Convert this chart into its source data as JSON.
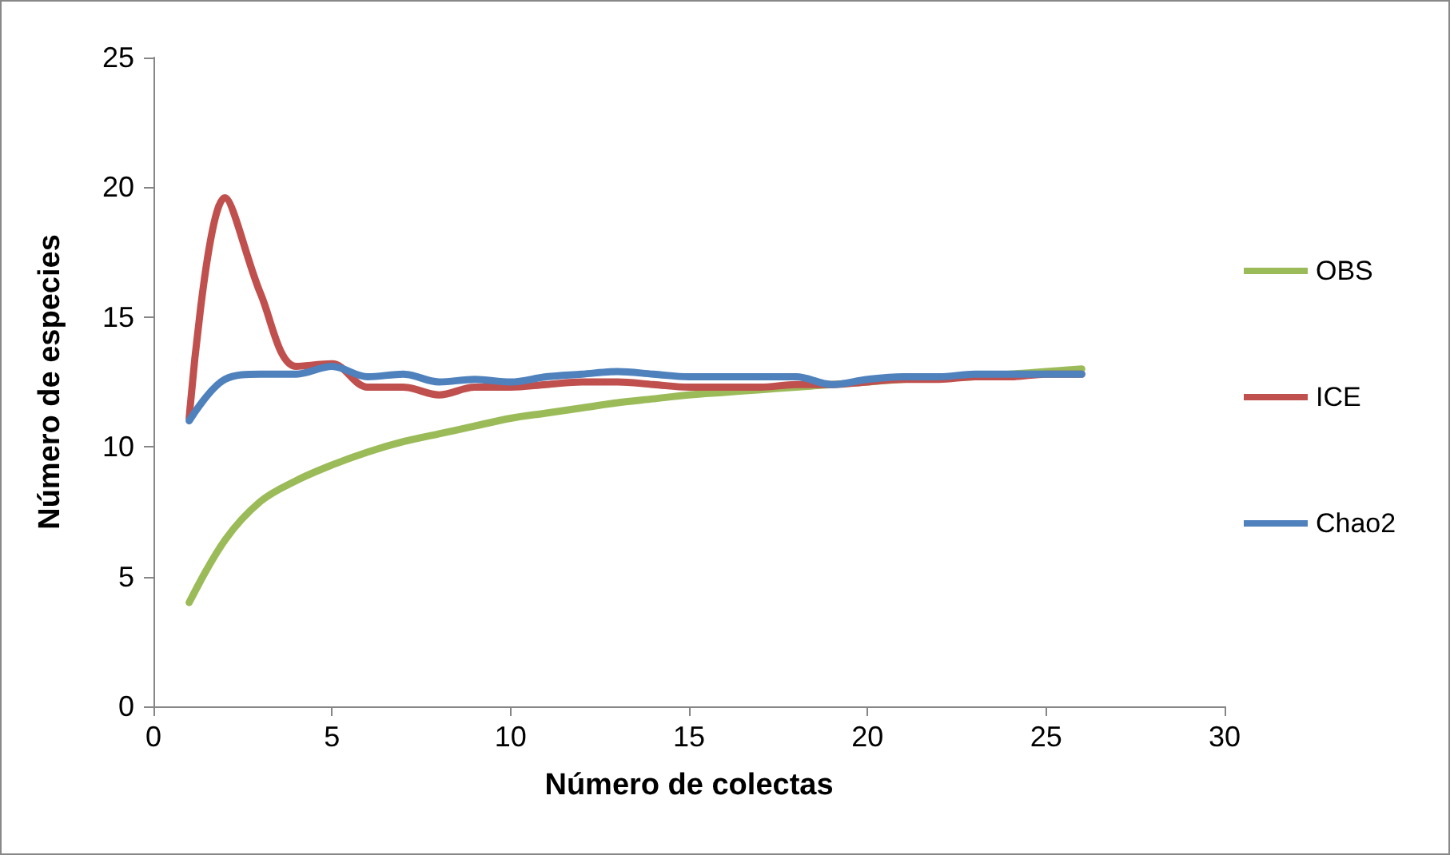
{
  "chart_data": {
    "type": "line",
    "xlabel": "Número de colectas",
    "ylabel": "Número de especies",
    "x": [
      1,
      2,
      3,
      4,
      5,
      6,
      7,
      8,
      9,
      10,
      11,
      12,
      13,
      14,
      15,
      16,
      17,
      18,
      19,
      20,
      21,
      22,
      23,
      24,
      25,
      26
    ],
    "series": [
      {
        "name": "OBS",
        "color": "#9bbb59",
        "values": [
          4.0,
          6.4,
          7.9,
          8.7,
          9.3,
          9.8,
          10.2,
          10.5,
          10.8,
          11.1,
          11.3,
          11.5,
          11.7,
          11.85,
          12.0,
          12.1,
          12.2,
          12.3,
          12.4,
          12.5,
          12.6,
          12.65,
          12.7,
          12.8,
          12.9,
          13.0
        ]
      },
      {
        "name": "ICE",
        "color": "#c0504d",
        "values": [
          11.1,
          19.6,
          15.9,
          13.1,
          13.2,
          12.3,
          12.3,
          12.0,
          12.3,
          12.3,
          12.4,
          12.5,
          12.5,
          12.4,
          12.3,
          12.3,
          12.3,
          12.4,
          12.4,
          12.5,
          12.6,
          12.6,
          12.7,
          12.7,
          12.8,
          12.8
        ]
      },
      {
        "name": "Chao2",
        "color": "#4f81bd",
        "values": [
          11.0,
          12.6,
          12.8,
          12.8,
          13.1,
          12.7,
          12.8,
          12.5,
          12.6,
          12.5,
          12.7,
          12.8,
          12.9,
          12.8,
          12.7,
          12.7,
          12.7,
          12.7,
          12.4,
          12.6,
          12.7,
          12.7,
          12.8,
          12.8,
          12.8,
          12.8
        ]
      }
    ],
    "xlim": [
      0,
      30
    ],
    "xticks": [
      0,
      5,
      10,
      15,
      20,
      25,
      30
    ],
    "ylim": [
      0,
      25
    ],
    "yticks": [
      0,
      5,
      10,
      15,
      20,
      25
    ],
    "grid": false,
    "legend": "right",
    "marker": "none",
    "line_style": "solid"
  }
}
